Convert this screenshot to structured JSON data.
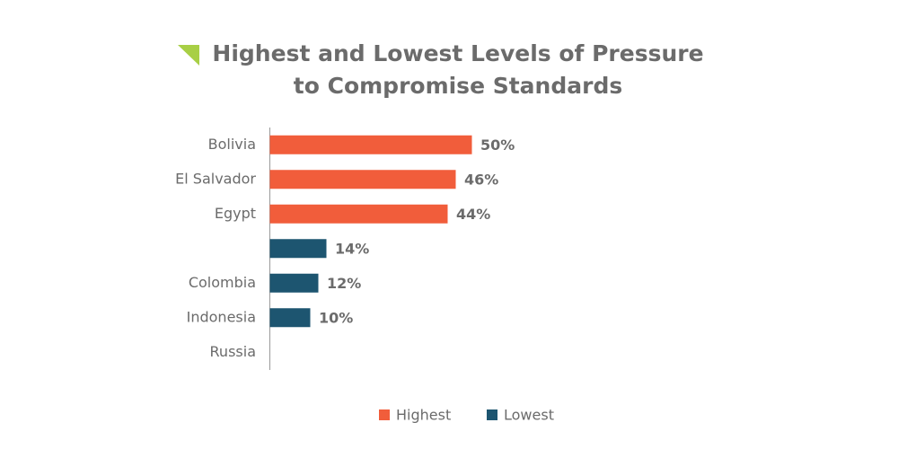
{
  "chart_data": {
    "type": "hbar",
    "title": [
      "Highest and Lowest Levels of Pressure",
      "to Compromise Standards"
    ],
    "categories": [
      "Bolivia",
      "El Salvador",
      "Egypt",
      null,
      "Colombia",
      "Indonesia",
      "Russia"
    ],
    "series": [
      {
        "name": "Highest",
        "color": "#f15d3b",
        "values": [
          50,
          46,
          44,
          null,
          null,
          null,
          null
        ],
        "value_labels": [
          "50%",
          "46%",
          "44%",
          null,
          null,
          null,
          null
        ]
      },
      {
        "name": "Lowest",
        "color": "#1d5570",
        "values": [
          null,
          null,
          null,
          14,
          12,
          10,
          null
        ],
        "value_labels": [
          null,
          null,
          null,
          "14%",
          "12%",
          "10%",
          null
        ]
      }
    ],
    "xlim": [
      0,
      100
    ],
    "legend": "bottom"
  }
}
